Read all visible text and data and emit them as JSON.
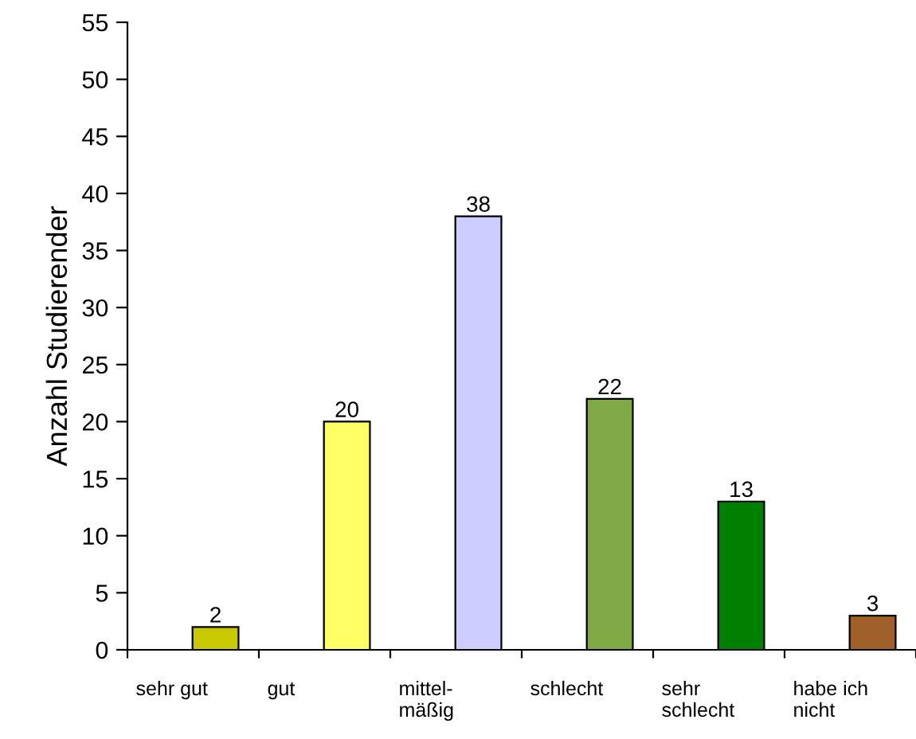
{
  "chart_data": {
    "type": "bar",
    "ylabel": "Anzahl Studierender",
    "categories": [
      "sehr gut",
      "gut",
      "mittel-\nmäßig",
      "schlecht",
      "sehr\nschlecht",
      "habe ich\nnicht"
    ],
    "values": [
      2,
      20,
      38,
      22,
      13,
      3
    ],
    "colors": [
      "#c8c800",
      "#ffff66",
      "#ccccff",
      "#7faa46",
      "#008000",
      "#a0602a"
    ],
    "ylim": [
      0,
      55
    ],
    "yticks": [
      0,
      5,
      10,
      15,
      20,
      25,
      30,
      35,
      40,
      45,
      50,
      55
    ],
    "data_labels": true,
    "grid": false,
    "legend": false
  }
}
